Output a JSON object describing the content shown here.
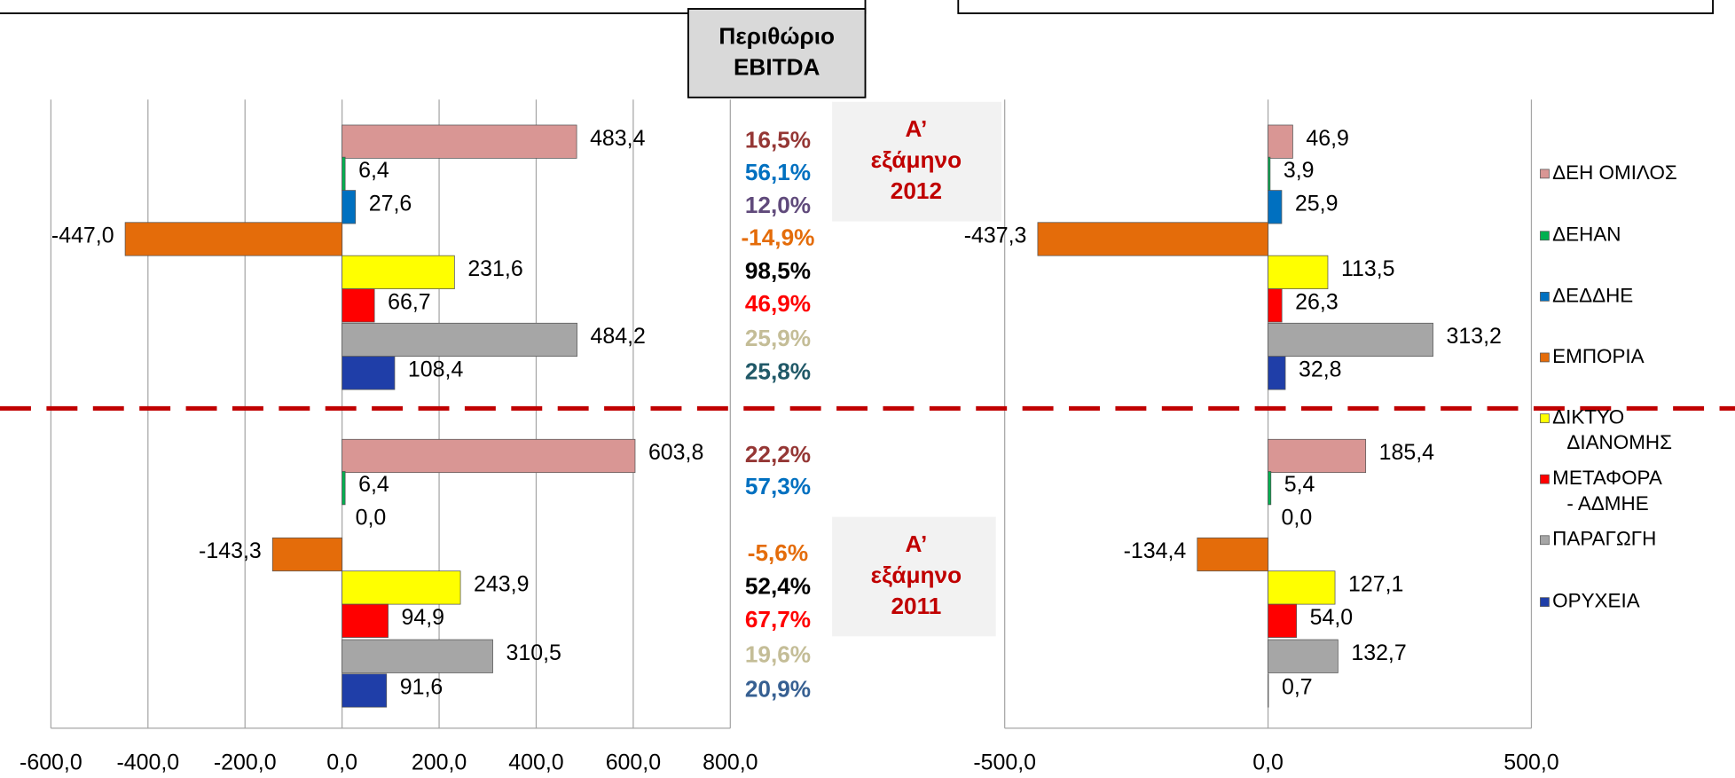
{
  "margin_title": [
    "Περιθώριο",
    "EBITDA"
  ],
  "periods": [
    [
      "Α’",
      "εξάμηνο",
      "2012"
    ],
    [
      "Α’",
      "εξάμηνο",
      "2011"
    ]
  ],
  "margins": [
    {
      "labels": [
        "16,5%",
        "56,1%",
        "12,0%",
        "-14,9%",
        "98,5%",
        "46,9%",
        "25,9%",
        "25,8%"
      ],
      "colors": [
        "#953735",
        "#0070c0",
        "#604a7b",
        "#e46c0a",
        "#000000",
        "#ff0000",
        "#c4bd97",
        "#215968"
      ]
    },
    {
      "labels": [
        "22,2%",
        "57,3%",
        null,
        "-5,6%",
        "52,4%",
        "67,7%",
        "19,6%",
        "20,9%"
      ],
      "colors": [
        "#953735",
        "#0070c0",
        null,
        "#e46c0a",
        "#000000",
        "#ff0000",
        "#c4bd97",
        "#376092"
      ]
    }
  ],
  "legend": [
    [
      "ΔΕΗ ΟΜΙΛΟΣ"
    ],
    [
      "ΔΕΗΑΝ"
    ],
    [
      "ΔΕΔΔΗΕ"
    ],
    [
      "ΕΜΠΟΡΙΑ"
    ],
    [
      "ΔΙΚΤΥΟ",
      "ΔΙΑΝΟΜΗΣ"
    ],
    [
      "ΜΕΤΑΦΟΡΑ",
      "- ΑΔΜΗΕ"
    ],
    [
      "ΠΑΡΑΓΩΓΗ"
    ],
    [
      "ΟΡΥΧΕΙΑ"
    ]
  ],
  "colors": [
    "#d99694",
    "#00b050",
    "#0070c0",
    "#e46c0a",
    "#ffff00",
    "#ff0000",
    "#a6a6a6",
    "#1f3ea8"
  ],
  "chart_data": [
    {
      "type": "hbar",
      "groups": [
        {
          "values": [
            483.4,
            6.4,
            27.6,
            -447.0,
            231.6,
            66.7,
            484.2,
            108.4
          ],
          "value_labels": [
            "483,4",
            "6,4",
            "27,6",
            "-447,0",
            "231,6",
            "66,7",
            "484,2",
            "108,4"
          ]
        },
        {
          "values": [
            603.8,
            6.4,
            0.0,
            -143.3,
            243.9,
            94.9,
            310.5,
            91.6
          ],
          "value_labels": [
            "603,8",
            "6,4",
            "0,0",
            "-143,3",
            "243,9",
            "94,9",
            "310,5",
            "91,6"
          ]
        }
      ],
      "xlim": [
        -600,
        800
      ],
      "xticks": [
        {
          "value": -600,
          "label": "-600,0"
        },
        {
          "value": -400,
          "label": "-400,0"
        },
        {
          "value": -200,
          "label": "-200,0"
        },
        {
          "value": 0,
          "label": "0,0"
        },
        {
          "value": 200,
          "label": "200,0"
        },
        {
          "value": 400,
          "label": "400,0"
        },
        {
          "value": 600,
          "label": "600,0"
        },
        {
          "value": 800,
          "label": "800,0"
        }
      ],
      "grid": true
    },
    {
      "type": "hbar",
      "groups": [
        {
          "values": [
            46.9,
            3.9,
            25.9,
            -437.3,
            113.5,
            26.3,
            313.2,
            32.8
          ],
          "value_labels": [
            "46,9",
            "3,9",
            "25,9",
            "-437,3",
            "113,5",
            "26,3",
            "313,2",
            "32,8"
          ]
        },
        {
          "values": [
            185.4,
            5.4,
            0.0,
            -134.4,
            127.1,
            54.0,
            132.7,
            0.7
          ],
          "value_labels": [
            "185,4",
            "5,4",
            "0,0",
            "-134,4",
            "127,1",
            "54,0",
            "132,7",
            "0,7"
          ]
        }
      ],
      "xlim": [
        -500,
        500
      ],
      "xticks": [
        {
          "value": -500,
          "label": "-500,0"
        },
        {
          "value": 0,
          "label": "0,0"
        },
        {
          "value": 500,
          "label": "500,0"
        }
      ],
      "grid": true
    }
  ]
}
